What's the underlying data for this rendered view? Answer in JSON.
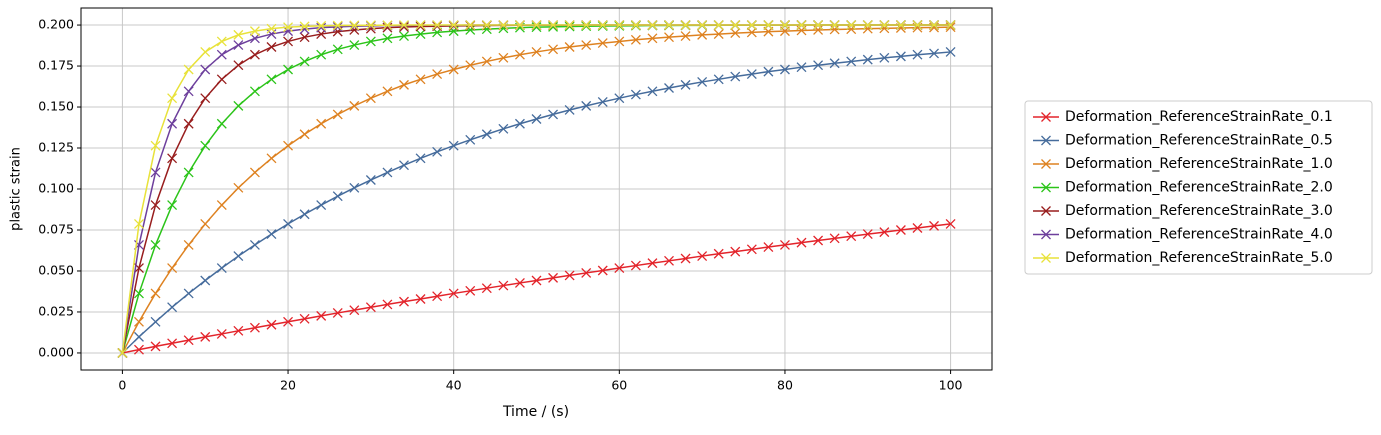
{
  "chart_data": {
    "type": "line",
    "xlabel": "Time / (s)",
    "ylabel": "plastic strain",
    "x": [
      0,
      2,
      4,
      6,
      8,
      10,
      12,
      14,
      16,
      18,
      20,
      22,
      24,
      26,
      28,
      30,
      32,
      34,
      36,
      38,
      40,
      42,
      44,
      46,
      48,
      50,
      52,
      54,
      56,
      58,
      60,
      62,
      64,
      66,
      68,
      70,
      72,
      74,
      76,
      78,
      80,
      82,
      84,
      86,
      88,
      90,
      92,
      94,
      96,
      98,
      100
    ],
    "series": [
      {
        "name": "Deformation_ReferenceStrainRate_0.1",
        "color": "#e3242b",
        "values": [
          0,
          0.002,
          0.004,
          0.0059,
          0.0078,
          0.0098,
          0.0116,
          0.0135,
          0.0154,
          0.0172,
          0.019,
          0.0208,
          0.0226,
          0.0244,
          0.0261,
          0.0279,
          0.0296,
          0.0313,
          0.0329,
          0.0346,
          0.0363,
          0.0379,
          0.0395,
          0.0411,
          0.0427,
          0.0442,
          0.0458,
          0.0473,
          0.0488,
          0.0503,
          0.0518,
          0.0533,
          0.0548,
          0.0562,
          0.0576,
          0.0591,
          0.0605,
          0.0618,
          0.0632,
          0.0646,
          0.0659,
          0.0673,
          0.0686,
          0.0699,
          0.0712,
          0.0725,
          0.0737,
          0.075,
          0.0762,
          0.0775,
          0.0787
        ]
      },
      {
        "name": "Deformation_ReferenceStrainRate_0.5",
        "color": "#466c9c",
        "values": [
          0,
          0.0098,
          0.019,
          0.0279,
          0.0363,
          0.0442,
          0.0518,
          0.0591,
          0.0659,
          0.0725,
          0.0787,
          0.0846,
          0.0902,
          0.0956,
          0.1007,
          0.1055,
          0.1101,
          0.1145,
          0.1187,
          0.1227,
          0.1264,
          0.13,
          0.1334,
          0.1367,
          0.1398,
          0.1427,
          0.1455,
          0.1482,
          0.1507,
          0.1531,
          0.1554,
          0.1576,
          0.1596,
          0.1616,
          0.1635,
          0.1653,
          0.1669,
          0.1686,
          0.1701,
          0.1716,
          0.1729,
          0.1743,
          0.1755,
          0.1767,
          0.1778,
          0.1789,
          0.18,
          0.1809,
          0.1819,
          0.1827,
          0.1836
        ]
      },
      {
        "name": "Deformation_ReferenceStrainRate_1.0",
        "color": "#de8221",
        "values": [
          0,
          0.019,
          0.0363,
          0.0518,
          0.0659,
          0.0787,
          0.0902,
          0.1007,
          0.1101,
          0.1187,
          0.1264,
          0.1334,
          0.1398,
          0.1455,
          0.1507,
          0.1554,
          0.1596,
          0.1635,
          0.1669,
          0.1701,
          0.1729,
          0.1755,
          0.1778,
          0.18,
          0.1819,
          0.1836,
          0.1852,
          0.1866,
          0.1878,
          0.189,
          0.19,
          0.191,
          0.1919,
          0.1926,
          0.1933,
          0.194,
          0.1945,
          0.1951,
          0.1955,
          0.196,
          0.1963,
          0.1967,
          0.197,
          0.1973,
          0.1975,
          0.1978,
          0.198,
          0.1982,
          0.1984,
          0.1985,
          0.1987
        ]
      },
      {
        "name": "Deformation_ReferenceStrainRate_2.0",
        "color": "#2bc419",
        "values": [
          0,
          0.0363,
          0.0659,
          0.0902,
          0.1101,
          0.1264,
          0.1398,
          0.1507,
          0.1596,
          0.1669,
          0.1729,
          0.1778,
          0.1819,
          0.1852,
          0.1878,
          0.19,
          0.1919,
          0.1933,
          0.1945,
          0.1955,
          0.1963,
          0.197,
          0.1975,
          0.198,
          0.1984,
          0.1987,
          0.1989,
          0.1991,
          0.1993,
          0.1994,
          0.1995,
          0.1996,
          0.1997,
          0.1997,
          0.1998,
          0.1998,
          0.1999,
          0.1999,
          0.1999,
          0.1999,
          0.1999,
          0.2,
          0.2,
          0.2,
          0.2,
          0.2,
          0.2,
          0.2,
          0.2,
          0.2,
          0.2
        ]
      },
      {
        "name": "Deformation_ReferenceStrainRate_3.0",
        "color": "#981d1d",
        "values": [
          0,
          0.0518,
          0.0902,
          0.1187,
          0.1398,
          0.1554,
          0.1669,
          0.1755,
          0.1819,
          0.1866,
          0.19,
          0.1926,
          0.1945,
          0.196,
          0.197,
          0.1978,
          0.1984,
          0.1988,
          0.1991,
          0.1993,
          0.1995,
          0.1996,
          0.1997,
          0.1998,
          0.1999,
          0.1999,
          0.1999,
          0.1999,
          0.2,
          0.2,
          0.2,
          0.2,
          0.2,
          0.2,
          0.2,
          0.2,
          0.2,
          0.2,
          0.2,
          0.2,
          0.2,
          0.2,
          0.2,
          0.2,
          0.2,
          0.2,
          0.2,
          0.2,
          0.2,
          0.2,
          0.2
        ]
      },
      {
        "name": "Deformation_ReferenceStrainRate_4.0",
        "color": "#6d3f9c",
        "values": [
          0,
          0.0659,
          0.1101,
          0.1398,
          0.1596,
          0.1729,
          0.1819,
          0.1878,
          0.1919,
          0.1945,
          0.1963,
          0.1975,
          0.1984,
          0.1989,
          0.1993,
          0.1995,
          0.1997,
          0.1998,
          0.1999,
          0.1999,
          0.1999,
          0.2,
          0.2,
          0.2,
          0.2,
          0.2,
          0.2,
          0.2,
          0.2,
          0.2,
          0.2,
          0.2,
          0.2,
          0.2,
          0.2,
          0.2,
          0.2,
          0.2,
          0.2,
          0.2,
          0.2,
          0.2,
          0.2,
          0.2,
          0.2,
          0.2,
          0.2,
          0.2,
          0.2,
          0.2,
          0.2
        ]
      },
      {
        "name": "Deformation_ReferenceStrainRate_5.0",
        "color": "#e8e23a",
        "values": [
          0,
          0.0787,
          0.1264,
          0.1554,
          0.1729,
          0.1836,
          0.19,
          0.194,
          0.1963,
          0.1978,
          0.1987,
          0.1992,
          0.1995,
          0.1997,
          0.1998,
          0.1999,
          0.1999,
          0.2,
          0.2,
          0.2,
          0.2,
          0.2,
          0.2,
          0.2,
          0.2,
          0.2,
          0.2,
          0.2,
          0.2,
          0.2,
          0.2,
          0.2,
          0.2,
          0.2,
          0.2,
          0.2,
          0.2,
          0.2,
          0.2,
          0.2,
          0.2,
          0.2,
          0.2,
          0.2,
          0.2,
          0.2,
          0.2,
          0.2,
          0.2,
          0.2,
          0.2
        ]
      }
    ],
    "xlim": [
      -5,
      105
    ],
    "xticks": [
      0,
      20,
      40,
      60,
      80,
      100
    ],
    "ylim": [
      -0.0104,
      0.2104
    ],
    "yticks": [
      {
        "value": 0,
        "label": "0.000"
      },
      {
        "value": 0.025,
        "label": "0.025"
      },
      {
        "value": 0.05,
        "label": "0.050"
      },
      {
        "value": 0.075,
        "label": "0.075"
      },
      {
        "value": 0.1,
        "label": "0.100"
      },
      {
        "value": 0.125,
        "label": "0.125"
      },
      {
        "value": 0.15,
        "label": "0.150"
      },
      {
        "value": 0.175,
        "label": "0.175"
      },
      {
        "value": 0.2,
        "label": "0.200"
      }
    ],
    "grid": true,
    "legend": "outside right",
    "marker": "x"
  }
}
